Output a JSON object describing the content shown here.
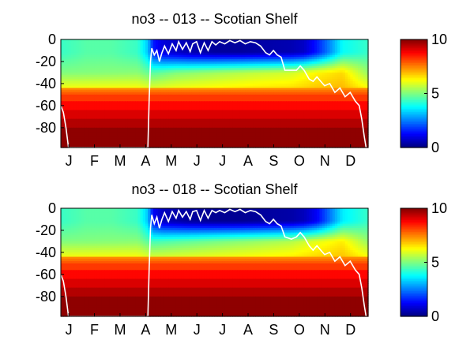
{
  "chart_data": [
    {
      "type": "heatmap",
      "title": "no3 -- 013 -- Scotian Shelf",
      "variable": "no3",
      "x_tick_labels": [
        "J",
        "F",
        "M",
        "A",
        "M",
        "J",
        "J",
        "A",
        "S",
        "O",
        "N",
        "D"
      ],
      "x_unit": "month",
      "y_tick_values": [
        0,
        -20,
        -40,
        -60,
        -80
      ],
      "ylim": [
        -98,
        0
      ],
      "colorbar": {
        "ticks": [
          0,
          5,
          10
        ],
        "range": [
          0,
          10
        ],
        "colormap": "jet"
      },
      "grid": false,
      "surface_layer": [
        {
          "month": 0.0,
          "value": 4.3
        },
        {
          "month": 1.0,
          "value": 4.6
        },
        {
          "month": 2.0,
          "value": 4.6
        },
        {
          "month": 3.0,
          "value": 4.3
        },
        {
          "month": 3.4,
          "value": 3.2
        },
        {
          "month": 3.6,
          "value": 1.5
        },
        {
          "month": 4.0,
          "value": 0.9
        },
        {
          "month": 5.0,
          "value": 0.5
        },
        {
          "month": 6.0,
          "value": 0.3
        },
        {
          "month": 7.0,
          "value": 0.3
        },
        {
          "month": 8.0,
          "value": 0.4
        },
        {
          "month": 9.0,
          "value": 0.5
        },
        {
          "month": 9.5,
          "value": 0.7
        },
        {
          "month": 10.0,
          "value": 1.5
        },
        {
          "month": 10.5,
          "value": 2.6
        },
        {
          "month": 11.0,
          "value": 3.8
        },
        {
          "month": 12.0,
          "value": 4.3
        }
      ],
      "mid_layer": [
        {
          "month": 0.0,
          "value": 5.0
        },
        {
          "month": 3.0,
          "value": 5.1
        },
        {
          "month": 3.6,
          "value": 4.6
        },
        {
          "month": 4.5,
          "value": 5.0
        },
        {
          "month": 6.0,
          "value": 5.3
        },
        {
          "month": 7.5,
          "value": 5.6
        },
        {
          "month": 9.0,
          "value": 5.8
        },
        {
          "month": 10.0,
          "value": 6.3
        },
        {
          "month": 11.0,
          "value": 6.6
        },
        {
          "month": 12.0,
          "value": 5.2
        }
      ],
      "mixed_layer_depth": [
        {
          "month": 0.0,
          "depth": -60
        },
        {
          "month": 0.1,
          "depth": -66
        },
        {
          "month": 0.2,
          "depth": -80
        },
        {
          "month": 0.3,
          "depth": -98
        },
        {
          "month": 3.4,
          "depth": -98
        },
        {
          "month": 3.45,
          "depth": -55
        },
        {
          "month": 3.5,
          "depth": -20
        },
        {
          "month": 3.55,
          "depth": -8
        },
        {
          "month": 3.65,
          "depth": -14
        },
        {
          "month": 3.75,
          "depth": -10
        },
        {
          "month": 3.85,
          "depth": -20
        },
        {
          "month": 3.95,
          "depth": -12
        },
        {
          "month": 4.05,
          "depth": -6
        },
        {
          "month": 4.2,
          "depth": -13
        },
        {
          "month": 4.35,
          "depth": -4
        },
        {
          "month": 4.5,
          "depth": -10
        },
        {
          "month": 4.6,
          "depth": -2
        },
        {
          "month": 4.75,
          "depth": -9
        },
        {
          "month": 4.9,
          "depth": -3
        },
        {
          "month": 5.05,
          "depth": -11
        },
        {
          "month": 5.15,
          "depth": -4
        },
        {
          "month": 5.3,
          "depth": -2
        },
        {
          "month": 5.45,
          "depth": -12
        },
        {
          "month": 5.6,
          "depth": -3
        },
        {
          "month": 5.75,
          "depth": -10
        },
        {
          "month": 5.9,
          "depth": -2
        },
        {
          "month": 6.05,
          "depth": -5
        },
        {
          "month": 6.2,
          "depth": -2
        },
        {
          "month": 6.4,
          "depth": -4
        },
        {
          "month": 6.6,
          "depth": -1
        },
        {
          "month": 6.8,
          "depth": -3
        },
        {
          "month": 7.0,
          "depth": -1
        },
        {
          "month": 7.2,
          "depth": -4
        },
        {
          "month": 7.4,
          "depth": -2
        },
        {
          "month": 7.6,
          "depth": -3
        },
        {
          "month": 7.8,
          "depth": -6
        },
        {
          "month": 8.0,
          "depth": -12
        },
        {
          "month": 8.15,
          "depth": -14
        },
        {
          "month": 8.3,
          "depth": -10
        },
        {
          "month": 8.45,
          "depth": -14
        },
        {
          "month": 8.6,
          "depth": -16
        },
        {
          "month": 8.75,
          "depth": -28
        },
        {
          "month": 9.0,
          "depth": -28
        },
        {
          "month": 9.2,
          "depth": -28
        },
        {
          "month": 9.35,
          "depth": -24
        },
        {
          "month": 9.5,
          "depth": -28
        },
        {
          "month": 9.7,
          "depth": -36
        },
        {
          "month": 9.85,
          "depth": -38
        },
        {
          "month": 10.0,
          "depth": -34
        },
        {
          "month": 10.15,
          "depth": -38
        },
        {
          "month": 10.3,
          "depth": -42
        },
        {
          "month": 10.5,
          "depth": -40
        },
        {
          "month": 10.7,
          "depth": -48
        },
        {
          "month": 10.9,
          "depth": -44
        },
        {
          "month": 11.1,
          "depth": -52
        },
        {
          "month": 11.3,
          "depth": -48
        },
        {
          "month": 11.5,
          "depth": -56
        },
        {
          "month": 11.65,
          "depth": -60
        },
        {
          "month": 11.75,
          "depth": -72
        },
        {
          "month": 11.85,
          "depth": -88
        },
        {
          "month": 11.92,
          "depth": -98
        }
      ]
    },
    {
      "type": "heatmap",
      "title": "no3 -- 018 -- Scotian Shelf",
      "variable": "no3",
      "x_tick_labels": [
        "J",
        "F",
        "M",
        "A",
        "M",
        "J",
        "J",
        "A",
        "S",
        "O",
        "N",
        "D"
      ],
      "x_unit": "month",
      "y_tick_values": [
        0,
        -20,
        -40,
        -60,
        -80
      ],
      "ylim": [
        -98,
        0
      ],
      "colorbar": {
        "ticks": [
          0,
          5,
          10
        ],
        "range": [
          0,
          10
        ],
        "colormap": "jet"
      },
      "grid": false,
      "surface_layer": [
        {
          "month": 0.0,
          "value": 4.3
        },
        {
          "month": 1.0,
          "value": 4.6
        },
        {
          "month": 2.0,
          "value": 4.6
        },
        {
          "month": 3.0,
          "value": 4.3
        },
        {
          "month": 3.4,
          "value": 3.2
        },
        {
          "month": 3.6,
          "value": 1.2
        },
        {
          "month": 4.0,
          "value": 0.6
        },
        {
          "month": 5.0,
          "value": 0.3
        },
        {
          "month": 6.0,
          "value": 0.2
        },
        {
          "month": 7.0,
          "value": 0.2
        },
        {
          "month": 8.0,
          "value": 0.3
        },
        {
          "month": 9.0,
          "value": 0.4
        },
        {
          "month": 9.5,
          "value": 0.6
        },
        {
          "month": 10.0,
          "value": 1.2
        },
        {
          "month": 10.5,
          "value": 2.4
        },
        {
          "month": 11.0,
          "value": 3.6
        },
        {
          "month": 12.0,
          "value": 4.3
        }
      ],
      "mid_layer": [
        {
          "month": 0.0,
          "value": 5.0
        },
        {
          "month": 3.0,
          "value": 5.1
        },
        {
          "month": 3.6,
          "value": 4.4
        },
        {
          "month": 4.5,
          "value": 4.6
        },
        {
          "month": 6.0,
          "value": 4.9
        },
        {
          "month": 7.5,
          "value": 5.2
        },
        {
          "month": 9.0,
          "value": 5.5
        },
        {
          "month": 10.0,
          "value": 6.0
        },
        {
          "month": 11.0,
          "value": 6.4
        },
        {
          "month": 12.0,
          "value": 5.2
        }
      ],
      "mixed_layer_depth": [
        {
          "month": 0.0,
          "depth": -60
        },
        {
          "month": 0.1,
          "depth": -66
        },
        {
          "month": 0.2,
          "depth": -80
        },
        {
          "month": 0.3,
          "depth": -98
        },
        {
          "month": 3.4,
          "depth": -98
        },
        {
          "month": 3.45,
          "depth": -55
        },
        {
          "month": 3.5,
          "depth": -18
        },
        {
          "month": 3.55,
          "depth": -6
        },
        {
          "month": 3.65,
          "depth": -14
        },
        {
          "month": 3.75,
          "depth": -8
        },
        {
          "month": 3.85,
          "depth": -18
        },
        {
          "month": 3.95,
          "depth": -10
        },
        {
          "month": 4.05,
          "depth": -4
        },
        {
          "month": 4.2,
          "depth": -12
        },
        {
          "month": 4.35,
          "depth": -3
        },
        {
          "month": 4.5,
          "depth": -9
        },
        {
          "month": 4.6,
          "depth": -2
        },
        {
          "month": 4.75,
          "depth": -8
        },
        {
          "month": 4.9,
          "depth": -3
        },
        {
          "month": 5.05,
          "depth": -10
        },
        {
          "month": 5.15,
          "depth": -3
        },
        {
          "month": 5.3,
          "depth": -2
        },
        {
          "month": 5.45,
          "depth": -11
        },
        {
          "month": 5.6,
          "depth": -2
        },
        {
          "month": 5.75,
          "depth": -9
        },
        {
          "month": 5.9,
          "depth": -2
        },
        {
          "month": 6.05,
          "depth": -4
        },
        {
          "month": 6.2,
          "depth": -2
        },
        {
          "month": 6.4,
          "depth": -4
        },
        {
          "month": 6.6,
          "depth": -1
        },
        {
          "month": 6.8,
          "depth": -3
        },
        {
          "month": 7.0,
          "depth": -1
        },
        {
          "month": 7.2,
          "depth": -4
        },
        {
          "month": 7.4,
          "depth": -2
        },
        {
          "month": 7.6,
          "depth": -3
        },
        {
          "month": 7.8,
          "depth": -6
        },
        {
          "month": 8.0,
          "depth": -12
        },
        {
          "month": 8.15,
          "depth": -14
        },
        {
          "month": 8.3,
          "depth": -10
        },
        {
          "month": 8.45,
          "depth": -14
        },
        {
          "month": 8.6,
          "depth": -16
        },
        {
          "month": 8.75,
          "depth": -26
        },
        {
          "month": 9.0,
          "depth": -28
        },
        {
          "month": 9.2,
          "depth": -26
        },
        {
          "month": 9.35,
          "depth": -22
        },
        {
          "month": 9.5,
          "depth": -26
        },
        {
          "month": 9.7,
          "depth": -34
        },
        {
          "month": 9.85,
          "depth": -38
        },
        {
          "month": 10.0,
          "depth": -34
        },
        {
          "month": 10.15,
          "depth": -38
        },
        {
          "month": 10.3,
          "depth": -42
        },
        {
          "month": 10.5,
          "depth": -40
        },
        {
          "month": 10.7,
          "depth": -48
        },
        {
          "month": 10.9,
          "depth": -44
        },
        {
          "month": 11.1,
          "depth": -52
        },
        {
          "month": 11.3,
          "depth": -48
        },
        {
          "month": 11.5,
          "depth": -56
        },
        {
          "month": 11.65,
          "depth": -60
        },
        {
          "month": 11.75,
          "depth": -72
        },
        {
          "month": 11.85,
          "depth": -88
        },
        {
          "month": 11.92,
          "depth": -98
        }
      ]
    }
  ]
}
